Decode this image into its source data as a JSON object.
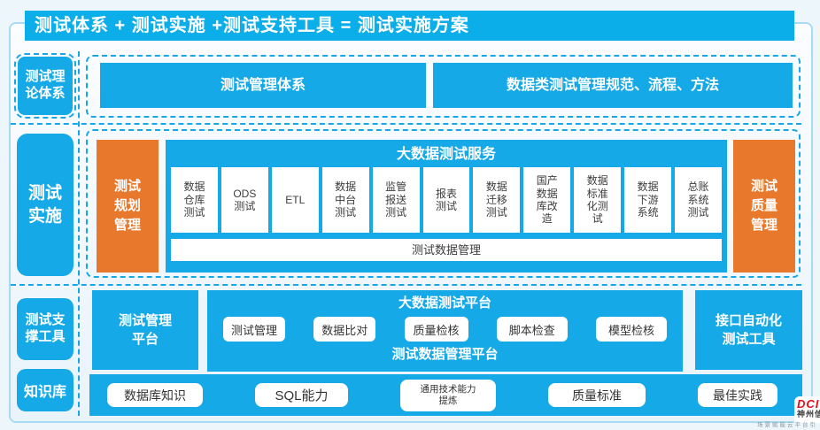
{
  "title_bar": {
    "text": "测试体系 + 测试实施 +测试支持工具 = 测试实施方案"
  },
  "sidebar": {
    "items": [
      {
        "label": "测试理\n论体系"
      },
      {
        "label": "测试\n实施"
      },
      {
        "label": "测试支\n撑工具"
      },
      {
        "label": "知识库"
      }
    ]
  },
  "theory_section": {
    "boxes": [
      "测试管理体系",
      "数据类测试管理规范、流程、方法"
    ]
  },
  "implementation_section": {
    "left_box": "测试\n规划\n管理",
    "right_box": "测试\n质量\n管理",
    "service": {
      "title": "大数据测试服务",
      "cells": [
        "数据\n仓库\n测试",
        "ODS\n测试",
        "ETL",
        "数据\n中台\n测试",
        "监管\n报送\n测试",
        "报表\n测试",
        "数据\n迁移\n测试",
        "国产\n数据\n库改\n造",
        "数据\n标准\n化测\n试",
        "数据\n下游\n系统",
        "总账\n系统\n测试"
      ],
      "bottom_bar": "测试数据管理"
    }
  },
  "tools_section": {
    "left_box": "测试管理\n平台",
    "right_box": "接口自动化\n测试工具",
    "platform": {
      "title": "大数据测试平台",
      "buttons": [
        "测试管理",
        "数据比对",
        "质量检核",
        "脚本检查",
        "模型检核"
      ],
      "bottom_title": "测试数据管理平台"
    }
  },
  "knowledge_section": {
    "buttons": [
      "数据库知识",
      "SQL能力",
      "通用技术能力\n提炼",
      "质量标准",
      "最佳实践"
    ]
  },
  "logo": {
    "brand": "DCITS",
    "company": "神州信息",
    "caption": "场景赋能云平台引"
  },
  "colors": {
    "brand_blue": "#0caee9",
    "box_blue": "#16a9e8",
    "orange": "#e8782c",
    "dashed_border": "#18a7e6",
    "cell_text": "#3d3d3d",
    "frame_border": "#a8daf2"
  }
}
